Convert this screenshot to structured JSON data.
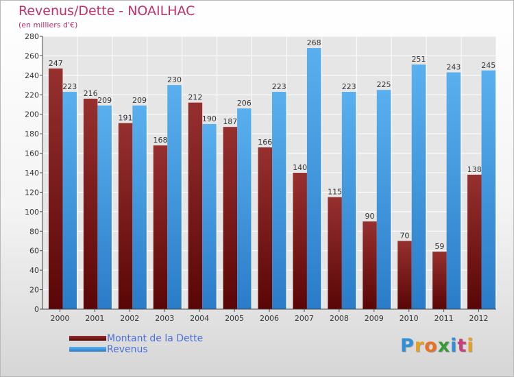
{
  "chart_data": {
    "type": "bar",
    "title": "Revenus/Dette - NOAILHAC",
    "subtitle": "(en milliers d'€)",
    "categories": [
      "2000",
      "2001",
      "2002",
      "2003",
      "2004",
      "2005",
      "2006",
      "2007",
      "2008",
      "2009",
      "2010",
      "2011",
      "2012"
    ],
    "series": [
      {
        "name": "Montant de la Dette",
        "color": "#7a1515",
        "values": [
          247,
          216,
          191,
          168,
          212,
          187,
          166,
          140,
          115,
          90,
          70,
          59,
          138
        ]
      },
      {
        "name": "Revenus",
        "color": "#3b96e0",
        "values": [
          223,
          209,
          209,
          230,
          190,
          206,
          223,
          268,
          223,
          225,
          251,
          243,
          245
        ]
      }
    ],
    "ylim": [
      0,
      280
    ],
    "yticks": [
      0,
      20,
      40,
      60,
      80,
      100,
      120,
      140,
      160,
      180,
      200,
      220,
      240,
      260,
      280
    ],
    "grid": true,
    "legend_position": "bottom-left"
  },
  "brand": {
    "logo_letters": [
      "P",
      "r",
      "o",
      "x",
      "i",
      "t",
      "i"
    ],
    "logo_colors": [
      "#2f8fd8",
      "#e8a020",
      "#e87020",
      "#3a9a3a",
      "#2f8fd8",
      "#c84080",
      "#e8a020"
    ]
  }
}
